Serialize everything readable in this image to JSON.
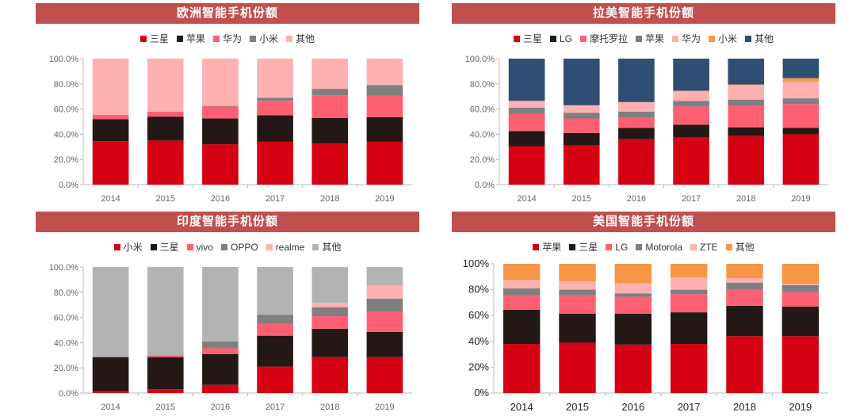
{
  "chart_data": [
    {
      "type": "bar",
      "stacked": true,
      "title": "欧洲智能手机份额",
      "categories": [
        "2014",
        "2015",
        "2016",
        "2017",
        "2018",
        "2019"
      ],
      "yticks": [
        "0.0%",
        "20.0%",
        "40.0%",
        "60.0%",
        "80.0%",
        "100.0%"
      ],
      "ylim": [
        0,
        100
      ],
      "legend_position": "top",
      "series": [
        {
          "name": "三星",
          "color": "#d50012",
          "values": [
            34.5,
            35,
            32,
            34,
            32.5,
            34
          ]
        },
        {
          "name": "苹果",
          "color": "#231815",
          "values": [
            17.5,
            19,
            20.5,
            21,
            20.5,
            19.5
          ]
        },
        {
          "name": "华为",
          "color": "#ff5f73",
          "values": [
            3.5,
            4,
            9.5,
            11.5,
            18,
            17
          ]
        },
        {
          "name": "小米",
          "color": "#7f7f7f",
          "values": [
            0,
            0,
            0.5,
            2.5,
            5,
            8.5
          ]
        },
        {
          "name": "其他",
          "color": "#ffb0b0",
          "values": [
            44.5,
            42,
            37.5,
            31,
            24,
            21
          ]
        }
      ]
    },
    {
      "type": "bar",
      "stacked": true,
      "title": "拉美智能手机份额",
      "categories": [
        "2014",
        "2015",
        "2016",
        "2017",
        "2018",
        "2019"
      ],
      "yticks": [
        "0.0%",
        "20.0%",
        "40.0%",
        "60.0%",
        "80.0%",
        "100.0%"
      ],
      "ylim": [
        0,
        100
      ],
      "legend_position": "top",
      "series": [
        {
          "name": "三星",
          "color": "#d50012",
          "values": [
            30.5,
            31,
            36,
            37.5,
            38.5,
            40
          ]
        },
        {
          "name": "LG",
          "color": "#231815",
          "values": [
            12,
            10,
            9,
            10,
            7,
            5
          ]
        },
        {
          "name": "摩托罗拉",
          "color": "#ff5f73",
          "values": [
            13.5,
            11.5,
            8,
            14.5,
            17,
            19
          ]
        },
        {
          "name": "苹果",
          "color": "#7f7f7f",
          "values": [
            5,
            4.5,
            5,
            4.5,
            5,
            4.5
          ]
        },
        {
          "name": "华为",
          "color": "#ffb0b0",
          "values": [
            5.5,
            6,
            7.5,
            8,
            11.5,
            13
          ]
        },
        {
          "name": "小米",
          "color": "#f79646",
          "values": [
            0,
            0,
            0,
            0,
            0.5,
            3
          ]
        },
        {
          "name": "其他",
          "color": "#2e4e74",
          "values": [
            33.5,
            37,
            34.5,
            25.5,
            20.5,
            15.5
          ]
        }
      ]
    },
    {
      "type": "bar",
      "stacked": true,
      "title": "印度智能手机份额",
      "categories": [
        "2014",
        "2015",
        "2016",
        "2017",
        "2018",
        "2019"
      ],
      "yticks": [
        "0.0%",
        "20.0%",
        "40.0%",
        "60.0%",
        "80.0%",
        "100.0%"
      ],
      "ylim": [
        0,
        100
      ],
      "legend_position": "top",
      "series": [
        {
          "name": "小米",
          "color": "#d50012",
          "values": [
            1.5,
            3,
            6.5,
            21,
            28.5,
            28.5
          ]
        },
        {
          "name": "三星",
          "color": "#231815",
          "values": [
            27,
            25.5,
            24.5,
            24.5,
            22.5,
            20
          ]
        },
        {
          "name": "vivo",
          "color": "#ff5f73",
          "values": [
            0,
            1.5,
            4.5,
            9.5,
            10,
            16
          ]
        },
        {
          "name": "OPPO",
          "color": "#7f7f7f",
          "values": [
            0,
            0,
            5.5,
            7,
            7,
            10.5
          ]
        },
        {
          "name": "realme",
          "color": "#ffb0b0",
          "values": [
            0,
            0,
            0,
            0,
            3.5,
            10.5
          ]
        },
        {
          "name": "其他",
          "color": "#b3b3b3",
          "values": [
            71.5,
            70,
            59,
            38,
            28.5,
            14.5
          ]
        }
      ]
    },
    {
      "type": "bar",
      "stacked": true,
      "title": "美国智能手机份额",
      "categories": [
        "2014",
        "2015",
        "2016",
        "2017",
        "2018",
        "2019"
      ],
      "yticks": [
        "0%",
        "20%",
        "40%",
        "60%",
        "80%",
        "100%"
      ],
      "ylim": [
        0,
        100
      ],
      "legend_position": "top",
      "series": [
        {
          "name": "苹果",
          "color": "#d50012",
          "values": [
            38,
            39,
            37.5,
            38,
            44,
            44
          ]
        },
        {
          "name": "三星",
          "color": "#231815",
          "values": [
            26.5,
            22.5,
            24,
            24.5,
            23.5,
            23
          ]
        },
        {
          "name": "LG",
          "color": "#ff5f73",
          "values": [
            11,
            14,
            13,
            14,
            12.5,
            11
          ]
        },
        {
          "name": "Motorola",
          "color": "#7f7f7f",
          "values": [
            5.5,
            4.5,
            2.5,
            3.5,
            5.5,
            5.5
          ]
        },
        {
          "name": "ZTE",
          "color": "#ffb0b0",
          "values": [
            6.5,
            6.5,
            8,
            9.5,
            3.5,
            1
          ]
        },
        {
          "name": "其他",
          "color": "#f79646",
          "values": [
            12.5,
            13.5,
            15,
            10.5,
            11,
            15.5
          ]
        }
      ]
    }
  ]
}
